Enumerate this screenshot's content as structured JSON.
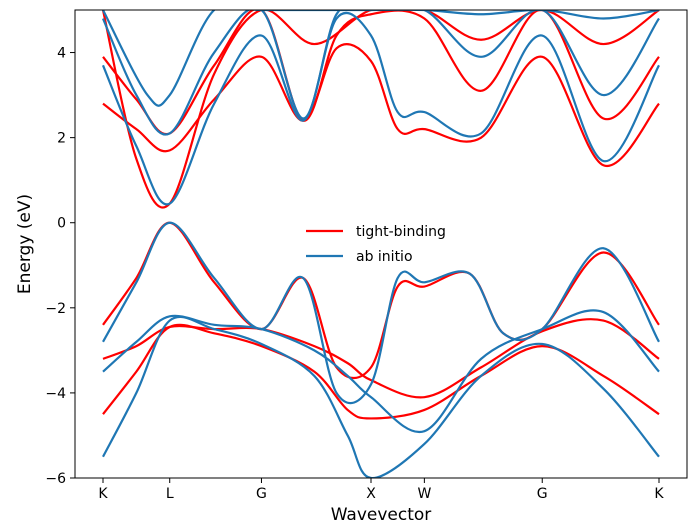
{
  "chart_data": {
    "type": "line",
    "xlabel": "Wavevector",
    "ylabel": "Energy (eV)",
    "ylim": [
      -6,
      5
    ],
    "yticks": [
      -6,
      -4,
      -2,
      0,
      2,
      4
    ],
    "ytick_labels": [
      "−6",
      "−4",
      "−2",
      "0",
      "2",
      "4"
    ],
    "xticks": [
      {
        "label": "K",
        "pos": 0.0
      },
      {
        "label": "L",
        "pos": 0.12
      },
      {
        "label": "G",
        "pos": 0.285
      },
      {
        "label": "X",
        "pos": 0.482
      },
      {
        "label": "W",
        "pos": 0.578
      },
      {
        "label": "G",
        "pos": 0.79
      },
      {
        "label": "K",
        "pos": 1.0
      }
    ],
    "legend": {
      "placement": "center",
      "entries": [
        "tight-binding",
        "ab initio"
      ]
    },
    "colors": {
      "tight-binding": "#ff0000",
      "ab initio": "#1f77b4"
    },
    "grid": false,
    "series": [
      {
        "name": "tight-binding",
        "color": "#ff0000",
        "bands": [
          [
            [
              0,
              -4.5
            ],
            [
              0.06,
              -3.5
            ],
            [
              0.12,
              -2.45
            ],
            [
              0.2,
              -2.6
            ],
            [
              0.285,
              -2.9
            ],
            [
              0.38,
              -3.5
            ],
            [
              0.44,
              -4.4
            ],
            [
              0.482,
              -4.6
            ],
            [
              0.578,
              -4.4
            ],
            [
              0.68,
              -3.6
            ],
            [
              0.79,
              -2.9
            ],
            [
              0.9,
              -3.6
            ],
            [
              1.0,
              -4.5
            ]
          ],
          [
            [
              0,
              -3.2
            ],
            [
              0.06,
              -2.9
            ],
            [
              0.12,
              -2.45
            ],
            [
              0.2,
              -2.5
            ],
            [
              0.285,
              -2.5
            ],
            [
              0.38,
              -2.9
            ],
            [
              0.44,
              -3.3
            ],
            [
              0.482,
              -3.7
            ],
            [
              0.578,
              -4.1
            ],
            [
              0.68,
              -3.4
            ],
            [
              0.79,
              -2.55
            ],
            [
              0.9,
              -2.3
            ],
            [
              1.0,
              -3.2
            ]
          ],
          [
            [
              0,
              -2.4
            ],
            [
              0.06,
              -1.3
            ],
            [
              0.12,
              0.0
            ],
            [
              0.2,
              -1.4
            ],
            [
              0.285,
              -2.5
            ],
            [
              0.36,
              -1.3
            ],
            [
              0.42,
              -3.4
            ],
            [
              0.482,
              -3.4
            ],
            [
              0.53,
              -1.5
            ],
            [
              0.578,
              -1.5
            ],
            [
              0.66,
              -1.2
            ],
            [
              0.72,
              -2.6
            ],
            [
              0.79,
              -2.5
            ],
            [
              0.9,
              -0.7
            ],
            [
              1.0,
              -2.4
            ]
          ],
          [
            [
              0,
              2.8
            ],
            [
              0.06,
              2.2
            ],
            [
              0.12,
              1.7
            ],
            [
              0.2,
              2.9
            ],
            [
              0.285,
              3.9
            ],
            [
              0.36,
              2.4
            ],
            [
              0.42,
              4.1
            ],
            [
              0.482,
              3.8
            ],
            [
              0.53,
              2.2
            ],
            [
              0.578,
              2.2
            ],
            [
              0.68,
              2.0
            ],
            [
              0.79,
              3.9
            ],
            [
              0.9,
              1.35
            ],
            [
              1.0,
              2.8
            ]
          ],
          [
            [
              0,
              3.9
            ],
            [
              0.06,
              2.9
            ],
            [
              0.12,
              2.1
            ],
            [
              0.2,
              3.7
            ],
            [
              0.285,
              5.0
            ],
            [
              0.36,
              2.4
            ],
            [
              0.42,
              4.4
            ],
            [
              0.482,
              4.9
            ],
            [
              0.578,
              4.8
            ],
            [
              0.68,
              3.1
            ],
            [
              0.79,
              5.0
            ],
            [
              0.9,
              2.45
            ],
            [
              1.0,
              3.9
            ]
          ],
          [
            [
              0,
              5.0
            ],
            [
              0.06,
              1.5
            ],
            [
              0.12,
              0.45
            ],
            [
              0.2,
              3.5
            ],
            [
              0.285,
              5.0
            ],
            [
              0.38,
              4.2
            ],
            [
              0.482,
              5.0
            ],
            [
              0.578,
              5.0
            ],
            [
              0.68,
              4.3
            ],
            [
              0.79,
              5.0
            ],
            [
              0.9,
              4.2
            ],
            [
              1.0,
              5.0
            ]
          ]
        ]
      },
      {
        "name": "ab initio",
        "color": "#1f77b4",
        "bands": [
          [
            [
              0,
              -5.5
            ],
            [
              0.06,
              -4.0
            ],
            [
              0.12,
              -2.3
            ],
            [
              0.2,
              -2.5
            ],
            [
              0.285,
              -2.85
            ],
            [
              0.38,
              -3.6
            ],
            [
              0.44,
              -5.0
            ],
            [
              0.482,
              -6.0
            ],
            [
              0.578,
              -5.2
            ],
            [
              0.68,
              -3.6
            ],
            [
              0.79,
              -2.85
            ],
            [
              0.9,
              -3.9
            ],
            [
              1.0,
              -5.5
            ]
          ],
          [
            [
              0,
              -3.5
            ],
            [
              0.06,
              -2.8
            ],
            [
              0.12,
              -2.2
            ],
            [
              0.2,
              -2.4
            ],
            [
              0.285,
              -2.5
            ],
            [
              0.38,
              -3.0
            ],
            [
              0.44,
              -3.6
            ],
            [
              0.482,
              -4.1
            ],
            [
              0.578,
              -4.9
            ],
            [
              0.68,
              -3.2
            ],
            [
              0.79,
              -2.5
            ],
            [
              0.9,
              -2.1
            ],
            [
              1.0,
              -3.5
            ]
          ],
          [
            [
              0,
              -2.8
            ],
            [
              0.06,
              -1.4
            ],
            [
              0.12,
              0.0
            ],
            [
              0.2,
              -1.3
            ],
            [
              0.285,
              -2.5
            ],
            [
              0.36,
              -1.3
            ],
            [
              0.42,
              -4.0
            ],
            [
              0.482,
              -3.8
            ],
            [
              0.53,
              -1.3
            ],
            [
              0.578,
              -1.4
            ],
            [
              0.66,
              -1.2
            ],
            [
              0.72,
              -2.6
            ],
            [
              0.79,
              -2.5
            ],
            [
              0.9,
              -0.6
            ],
            [
              1.0,
              -2.8
            ]
          ],
          [
            [
              0,
              3.7
            ],
            [
              0.06,
              1.8
            ],
            [
              0.12,
              0.45
            ],
            [
              0.2,
              2.8
            ],
            [
              0.285,
              4.4
            ],
            [
              0.36,
              2.4
            ],
            [
              0.42,
              4.8
            ],
            [
              0.482,
              4.4
            ],
            [
              0.53,
              2.6
            ],
            [
              0.578,
              2.6
            ],
            [
              0.68,
              2.1
            ],
            [
              0.79,
              4.4
            ],
            [
              0.9,
              1.45
            ],
            [
              1.0,
              3.7
            ]
          ],
          [
            [
              0,
              4.8
            ],
            [
              0.06,
              3.0
            ],
            [
              0.12,
              2.1
            ],
            [
              0.2,
              4.0
            ],
            [
              0.285,
              5.0
            ],
            [
              0.36,
              2.45
            ],
            [
              0.42,
              4.9
            ],
            [
              0.482,
              5.0
            ],
            [
              0.578,
              5.0
            ],
            [
              0.68,
              3.9
            ],
            [
              0.79,
              5.0
            ],
            [
              0.9,
              3.0
            ],
            [
              1.0,
              4.8
            ]
          ],
          [
            [
              0,
              5.0
            ],
            [
              0.08,
              3.0
            ],
            [
              0.12,
              3.0
            ],
            [
              0.2,
              5.0
            ],
            [
              0.285,
              5.0
            ],
            [
              0.482,
              5.0
            ],
            [
              0.578,
              5.0
            ],
            [
              0.68,
              4.9
            ],
            [
              0.79,
              5.0
            ],
            [
              0.9,
              4.8
            ],
            [
              1.0,
              5.0
            ]
          ]
        ]
      }
    ]
  }
}
